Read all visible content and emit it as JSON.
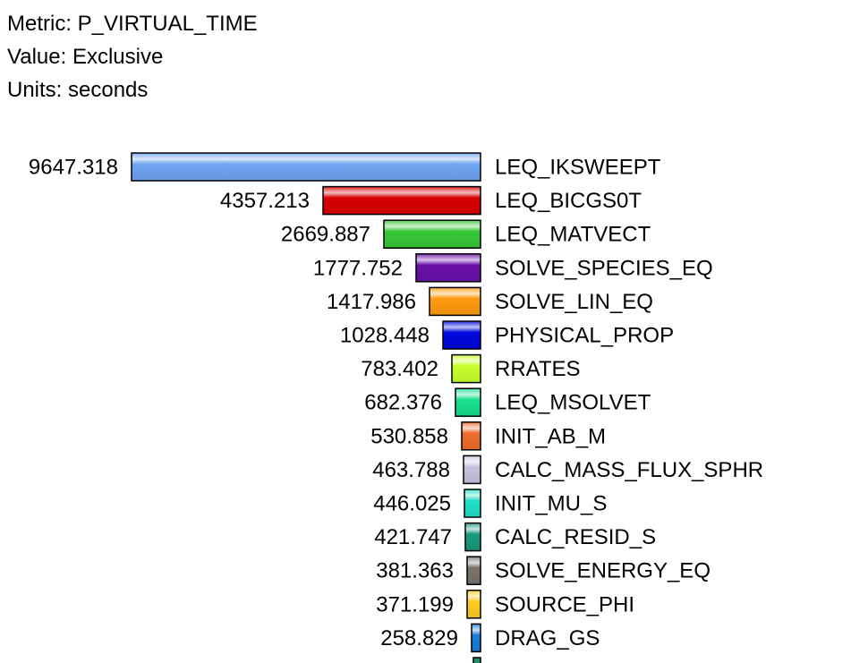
{
  "header": {
    "metric_label": "Metric: P_VIRTUAL_TIME",
    "value_label": "Value: Exclusive",
    "units_label": "Units: seconds"
  },
  "chart_data": {
    "type": "bar",
    "orientation": "horizontal",
    "title": "",
    "xlabel": "",
    "ylabel": "",
    "categories": [
      "LEQ_IKSWEEPT",
      "LEQ_BICGS0T",
      "LEQ_MATVECT",
      "SOLVE_SPECIES_EQ",
      "SOLVE_LIN_EQ",
      "PHYSICAL_PROP",
      "RRATES",
      "LEQ_MSOLVET",
      "INIT_AB_M",
      "CALC_MASS_FLUX_SPHR",
      "INIT_MU_S",
      "CALC_RESID_S",
      "SOLVE_ENERGY_EQ",
      "SOURCE_PHI",
      "DRAG_GS"
    ],
    "values": [
      9647.318,
      4357.213,
      2669.887,
      1777.752,
      1417.986,
      1028.448,
      783.402,
      682.376,
      530.858,
      463.788,
      446.025,
      421.747,
      381.363,
      371.199,
      258.829
    ],
    "value_labels": [
      "9647.318",
      "4357.213",
      "2669.887",
      "1777.752",
      "1417.986",
      "1028.448",
      "783.402",
      "682.376",
      "530.858",
      "463.788",
      "446.025",
      "421.747",
      "381.363",
      "371.199",
      "258.829"
    ],
    "colors": [
      "#6fa4f0",
      "#d80000",
      "#37c837",
      "#6a11a9",
      "#ff9a0f",
      "#0008dc",
      "#c6ff2c",
      "#18e08e",
      "#ef6c2c",
      "#c8c2de",
      "#20e0c6",
      "#199a7e",
      "#7a746e",
      "#ffcc21",
      "#1b7ee0"
    ],
    "grid": false,
    "legend": "none"
  }
}
